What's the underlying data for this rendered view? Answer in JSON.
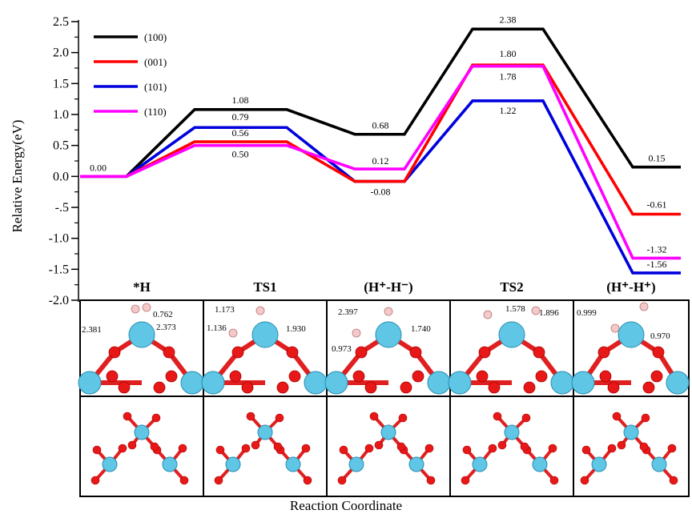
{
  "chart_data": {
    "type": "line",
    "ylabel": "Relative Energy(eV)",
    "xlabel": "Reaction Coordinate",
    "ylim": [
      -2.0,
      2.5
    ],
    "yticks": [
      "2.5",
      "2.0",
      "1.5",
      "1.0",
      "0.5",
      "0.0",
      "-.5",
      "-1.0",
      "-1.5",
      "-2.0"
    ],
    "ytick_values": [
      2.5,
      2.0,
      1.5,
      1.0,
      0.5,
      0.0,
      -0.5,
      -1.0,
      -1.5,
      -2.0
    ],
    "stages": [
      "*H",
      "TS1",
      "(H⁺-H⁻)",
      "TS2",
      "(H⁺-H⁺)"
    ],
    "legend_position": "top-left",
    "grid": false,
    "series": [
      {
        "name": "(100)",
        "color": "#000000",
        "values": [
          0.0,
          1.08,
          0.68,
          2.38,
          0.15
        ],
        "labels": [
          "0.00",
          "1.08",
          "0.68",
          "2.38",
          "0.15"
        ]
      },
      {
        "name": "(001)",
        "color": "#ff0000",
        "values": [
          0.0,
          0.56,
          -0.08,
          1.8,
          -0.61
        ],
        "labels": [
          "",
          "0.56",
          "",
          "1.80",
          "-0.61"
        ]
      },
      {
        "name": "(101)",
        "color": "#0000dd",
        "values": [
          0.0,
          0.79,
          -0.08,
          1.22,
          -1.56
        ],
        "labels": [
          "",
          "0.79",
          "-0.08",
          "1.22",
          "-1.56"
        ]
      },
      {
        "name": "(110)",
        "color": "#ff00ff",
        "values": [
          0.0,
          0.5,
          0.12,
          1.78,
          -1.32
        ],
        "labels": [
          "",
          "0.50",
          "0.12",
          "1.78",
          "-1.32"
        ]
      }
    ],
    "structure_annotations": [
      [
        "0.762",
        "2.381",
        "2.373"
      ],
      [
        "1.173",
        "1.136",
        "1.930"
      ],
      [
        "2.397",
        "0.973",
        "1.740"
      ],
      [
        "1.578",
        "1.896"
      ],
      [
        "0.999",
        "0.970"
      ]
    ]
  }
}
